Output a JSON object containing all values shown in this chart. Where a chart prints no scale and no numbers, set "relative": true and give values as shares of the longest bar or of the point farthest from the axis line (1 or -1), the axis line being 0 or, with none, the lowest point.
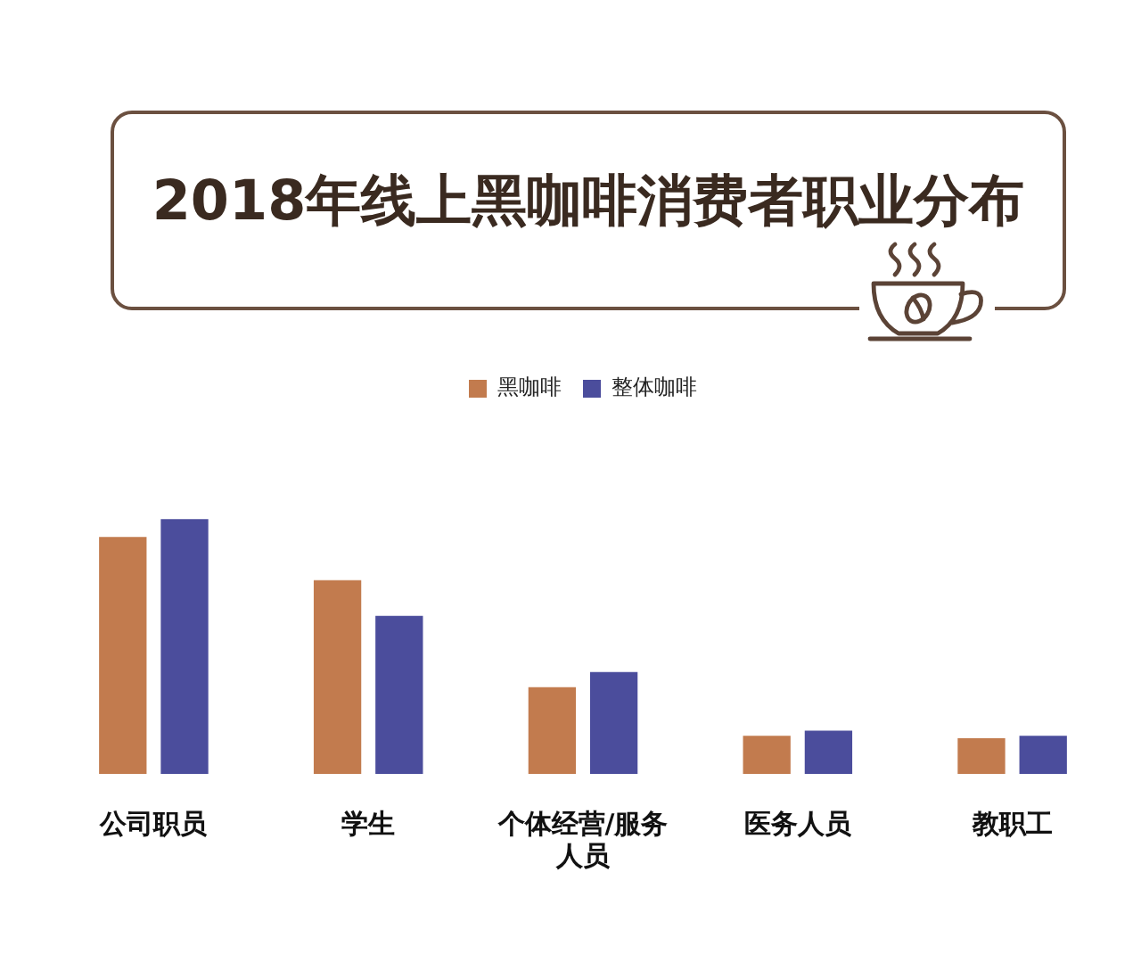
{
  "chart_data": {
    "type": "bar",
    "title": "2018年线上黑咖啡消费者职业分布",
    "categories": [
      "公司职员",
      "学生",
      "个体经营/服务人员",
      "医务人员",
      "教职工"
    ],
    "series": [
      {
        "name": "黑咖啡",
        "color": "#c27b4e",
        "values": [
          0.93,
          0.76,
          0.34,
          0.15,
          0.14
        ]
      },
      {
        "name": "整体咖啡",
        "color": "#4b4d9c",
        "values": [
          1,
          0.62,
          0.4,
          0.17,
          0.15
        ]
      }
    ],
    "relative": true,
    "legend": "top"
  }
}
